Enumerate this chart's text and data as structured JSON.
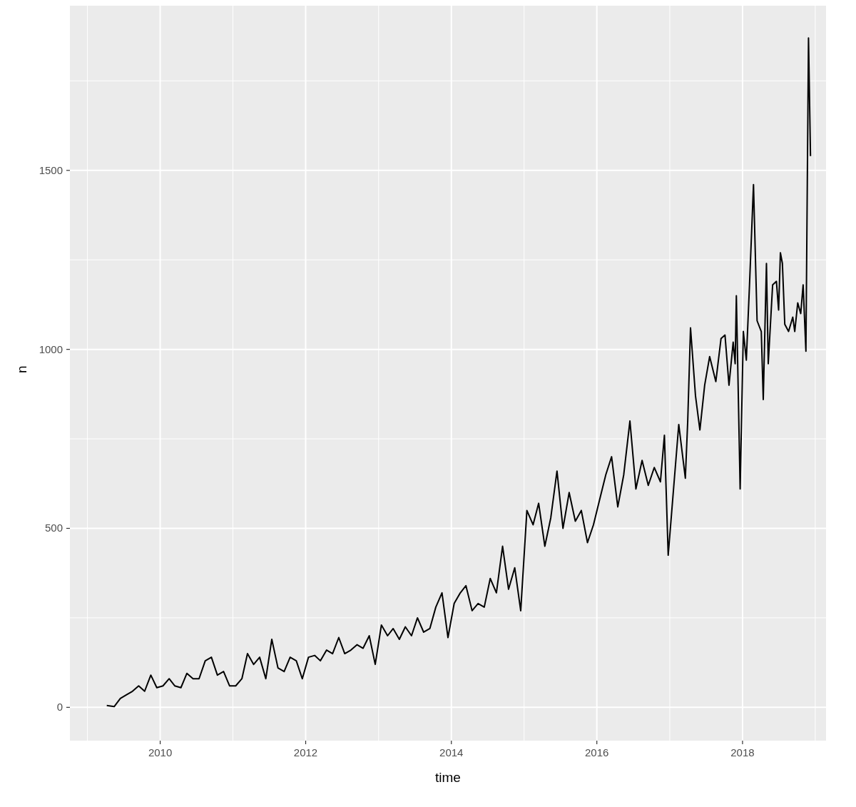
{
  "chart_data": {
    "type": "line",
    "xlabel": "time",
    "ylabel": "n",
    "grid": true,
    "legend": false,
    "marker": "none",
    "line_style": "solid",
    "xlim": [
      "2008-10-05",
      "2019-02-24"
    ],
    "xticks": [
      {
        "value": "2009",
        "label": null
      },
      "2010",
      {
        "value": "2011",
        "label": null
      },
      "2012",
      {
        "value": "2013",
        "label": null
      },
      "2014",
      {
        "value": "2015",
        "label": null
      },
      "2016",
      {
        "value": "2017",
        "label": null
      },
      "2018",
      {
        "value": "2019",
        "label": null
      }
    ],
    "ylim": [
      -93,
      1960
    ],
    "yticks": [
      0,
      {
        "value": 250,
        "label": null
      },
      500,
      {
        "value": 750,
        "label": null
      },
      1000,
      {
        "value": 1250,
        "label": null
      },
      1500,
      {
        "value": 1750,
        "label": null
      }
    ],
    "series": [
      {
        "color": "#000000",
        "x": [
          "2009-04-08",
          "2009-05-15",
          "2009-06-15",
          "2009-07-15",
          "2009-08-15",
          "2009-09-15",
          "2009-10-15",
          "2009-11-15",
          "2009-12-15",
          "2010-01-15",
          "2010-02-15",
          "2010-03-15",
          "2010-04-15",
          "2010-05-15",
          "2010-06-15",
          "2010-07-15",
          "2010-08-15",
          "2010-09-15",
          "2010-10-15",
          "2010-11-15",
          "2010-12-15",
          "2011-01-15",
          "2011-02-15",
          "2011-03-15",
          "2011-04-15",
          "2011-05-15",
          "2011-06-15",
          "2011-07-15",
          "2011-08-15",
          "2011-09-15",
          "2011-10-15",
          "2011-11-15",
          "2011-12-15",
          "2012-01-15",
          "2012-02-15",
          "2012-03-15",
          "2012-04-15",
          "2012-05-15",
          "2012-06-15",
          "2012-07-15",
          "2012-08-15",
          "2012-09-15",
          "2012-10-15",
          "2012-11-15",
          "2012-12-15",
          "2013-01-15",
          "2013-02-15",
          "2013-03-15",
          "2013-04-15",
          "2013-05-15",
          "2013-06-15",
          "2013-07-15",
          "2013-08-15",
          "2013-09-15",
          "2013-10-15",
          "2013-11-15",
          "2013-12-15",
          "2014-01-15",
          "2014-02-15",
          "2014-03-15",
          "2014-04-15",
          "2014-05-15",
          "2014-06-15",
          "2014-07-15",
          "2014-08-15",
          "2014-09-15",
          "2014-10-15",
          "2014-11-15",
          "2014-12-15",
          "2015-01-15",
          "2015-02-15",
          "2015-03-15",
          "2015-04-15",
          "2015-05-15",
          "2015-06-15",
          "2015-07-15",
          "2015-08-15",
          "2015-09-15",
          "2015-10-15",
          "2015-11-15",
          "2015-12-15",
          "2016-01-15",
          "2016-02-15",
          "2016-03-15",
          "2016-04-15",
          "2016-05-15",
          "2016-06-15",
          "2016-07-15",
          "2016-08-15",
          "2016-09-15",
          "2016-10-15",
          "2016-11-15",
          "2016-12-05",
          "2016-12-24",
          "2017-02-15",
          "2017-03-20",
          "2017-04-01",
          "2017-04-15",
          "2017-05-10",
          "2017-06-01",
          "2017-06-25",
          "2017-07-20",
          "2017-08-20",
          "2017-09-15",
          "2017-10-05",
          "2017-10-25",
          "2017-11-15",
          "2017-11-25",
          "2017-12-01",
          "2017-12-20",
          "2018-01-05",
          "2018-01-20",
          "2018-02-05",
          "2018-02-25",
          "2018-03-15",
          "2018-04-05",
          "2018-04-15",
          "2018-05-01",
          "2018-05-10",
          "2018-06-01",
          "2018-06-20",
          "2018-07-01",
          "2018-07-10",
          "2018-07-20",
          "2018-08-01",
          "2018-08-20",
          "2018-09-10",
          "2018-09-20",
          "2018-10-05",
          "2018-10-20",
          "2018-11-01",
          "2018-11-15",
          "2018-11-28",
          "2018-12-08"
        ],
        "values": [
          5,
          2,
          25,
          35,
          45,
          60,
          45,
          90,
          55,
          60,
          80,
          60,
          55,
          95,
          80,
          80,
          130,
          140,
          90,
          100,
          60,
          60,
          80,
          150,
          120,
          140,
          80,
          190,
          110,
          100,
          140,
          130,
          80,
          140,
          145,
          130,
          160,
          150,
          195,
          150,
          160,
          175,
          165,
          200,
          120,
          230,
          200,
          220,
          190,
          225,
          200,
          250,
          210,
          220,
          280,
          320,
          195,
          290,
          320,
          340,
          270,
          290,
          280,
          360,
          320,
          450,
          330,
          390,
          270,
          550,
          510,
          570,
          450,
          530,
          660,
          500,
          600,
          520,
          550,
          460,
          510,
          580,
          650,
          700,
          560,
          650,
          800,
          610,
          690,
          620,
          670,
          630,
          760,
          425,
          790,
          640,
          800,
          1060,
          870,
          775,
          900,
          980,
          910,
          1030,
          1040,
          900,
          1020,
          960,
          1150,
          610,
          1050,
          970,
          1180,
          1460,
          1080,
          1050,
          860,
          1240,
          960,
          1180,
          1190,
          1110,
          1270,
          1240,
          1070,
          1050,
          1090,
          1050,
          1130,
          1100,
          1180,
          995,
          1870,
          1540
        ]
      }
    ]
  }
}
